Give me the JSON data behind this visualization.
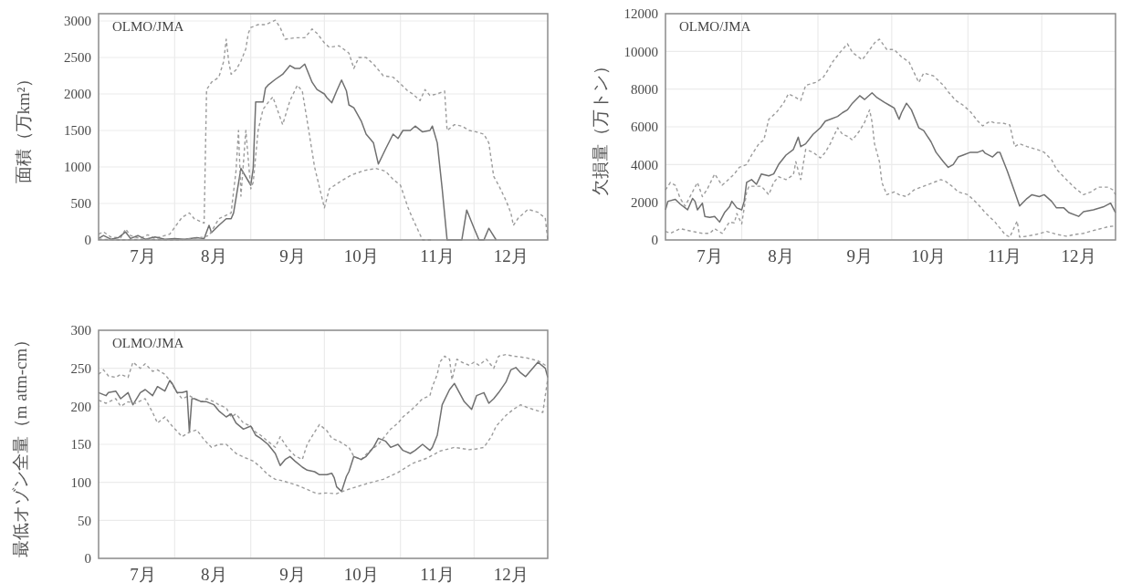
{
  "chart_data": [
    {
      "type": "line",
      "annotations": [
        "OLMO/JMA"
      ],
      "ylabel": "面積（万km²）",
      "xlim": [
        "--07-01",
        "--12-31"
      ],
      "xticks": [
        {
          "value": "--07-19",
          "label": "7月"
        },
        {
          "value": "--08-01",
          "label": null
        },
        {
          "value": "--08-17",
          "label": "8月"
        },
        {
          "value": "--09-01",
          "label": null
        },
        {
          "value": "--09-18",
          "label": "9月"
        },
        {
          "value": "--10-01",
          "label": null
        },
        {
          "value": "--10-16",
          "label": "10月"
        },
        {
          "value": "--11-01",
          "label": null
        },
        {
          "value": "--11-16",
          "label": "11月"
        },
        {
          "value": "--12-01",
          "label": null
        },
        {
          "value": "--12-16",
          "label": "12月"
        }
      ],
      "ylim": [
        0,
        3100
      ],
      "yticks": [
        0,
        500,
        1000,
        1500,
        2000,
        2500,
        3000
      ],
      "grid": true,
      "series": [
        {
          "color": "#9c9c9c",
          "line_style": "dashed",
          "x": [
            "--07-01",
            "--07-03",
            "--07-06",
            "--07-10",
            "--07-12",
            "--07-14",
            "--07-18",
            "--07-21",
            "--07-24",
            "--07-28",
            "--07-30",
            "--08-04",
            "--08-07",
            "--08-09",
            "--08-13",
            "--08-14",
            "--08-16",
            "--08-19",
            "--08-21",
            "--08-22",
            "--08-23",
            "--08-24",
            "--08-26",
            "--08-28",
            "--08-30",
            "--08-31",
            "--09-01",
            "--09-04",
            "--09-07",
            "--09-11",
            "--09-13",
            "--09-15",
            "--09-19",
            "--09-23",
            "--09-26",
            "--09-28",
            "--10-01",
            "--10-03",
            "--10-07",
            "--10-11",
            "--10-13",
            "--10-15",
            "--10-18",
            "--10-21",
            "--10-25",
            "--10-29",
            "--11-01",
            "--11-04",
            "--11-06",
            "--11-09",
            "--11-11",
            "--11-13",
            "--11-16",
            "--11-19",
            "--11-20",
            "--11-23",
            "--11-26",
            "--11-29",
            "--12-02",
            "--12-05",
            "--12-07",
            "--12-09",
            "--12-11",
            "--12-14",
            "--12-16",
            "--12-17",
            "--12-19",
            "--12-23",
            "--12-27",
            "--12-30",
            "--12-31"
          ],
          "values": [
            80,
            110,
            40,
            30,
            150,
            60,
            20,
            70,
            20,
            60,
            80,
            310,
            370,
            290,
            230,
            2060,
            2160,
            2230,
            2450,
            2750,
            2450,
            2270,
            2330,
            2450,
            2620,
            2830,
            2910,
            2950,
            2950,
            3010,
            2910,
            2750,
            2770,
            2770,
            2890,
            2830,
            2700,
            2640,
            2660,
            2560,
            2350,
            2500,
            2500,
            2410,
            2250,
            2230,
            2140,
            2040,
            2000,
            1910,
            2060,
            1980,
            2000,
            2040,
            1500,
            1580,
            1560,
            1500,
            1480,
            1450,
            1330,
            870,
            750,
            540,
            370,
            200,
            300,
            420,
            380,
            300,
            0
          ]
        },
        {
          "color": "#707070",
          "line_style": "solid",
          "x": [
            "--07-01",
            "--07-03",
            "--07-06",
            "--07-09",
            "--07-12",
            "--07-14",
            "--07-17",
            "--07-20",
            "--07-24",
            "--07-28",
            "--08-01",
            "--08-05",
            "--08-10",
            "--08-13",
            "--08-15",
            "--08-16",
            "--08-19",
            "--08-22",
            "--08-24",
            "--08-25",
            "--08-28",
            "--09-01",
            "--09-02",
            "--09-03",
            "--09-06",
            "--09-07",
            "--09-08",
            "--09-11",
            "--09-14",
            "--09-17",
            "--09-19",
            "--09-21",
            "--09-23",
            "--09-26",
            "--09-28",
            "--10-01",
            "--10-02",
            "--10-04",
            "--10-06",
            "--10-08",
            "--10-10",
            "--10-11",
            "--10-13",
            "--10-16",
            "--10-18",
            "--10-21",
            "--10-23",
            "--10-26",
            "--10-29",
            "--10-31",
            "--11-02",
            "--11-05",
            "--11-07",
            "--11-10",
            "--11-13",
            "--11-14",
            "--11-16",
            "--11-18",
            "--11-20",
            "--11-24",
            "--11-26",
            "--11-28",
            "--12-01",
            "--12-03",
            "--12-05",
            "--12-07",
            "--12-10"
          ],
          "values": [
            20,
            60,
            10,
            30,
            110,
            20,
            60,
            10,
            40,
            10,
            20,
            10,
            30,
            20,
            200,
            100,
            200,
            290,
            290,
            370,
            980,
            750,
            980,
            1890,
            1890,
            2080,
            2120,
            2200,
            2270,
            2390,
            2350,
            2350,
            2410,
            2160,
            2060,
            2000,
            1950,
            1880,
            2040,
            2190,
            2040,
            1850,
            1810,
            1630,
            1450,
            1330,
            1040,
            1250,
            1450,
            1390,
            1500,
            1500,
            1560,
            1480,
            1500,
            1560,
            1330,
            700,
            0,
            0,
            0,
            410,
            160,
            0,
            0,
            160,
            0
          ]
        },
        {
          "color": "#9c9c9c",
          "line_style": "dashed",
          "x": [
            "--07-01",
            "--07-10",
            "--07-20",
            "--08-01",
            "--08-10",
            "--08-15",
            "--08-19",
            "--08-24",
            "--08-26",
            "--08-27",
            "--08-28",
            "--08-30",
            "--09-01",
            "--09-02",
            "--09-04",
            "--09-06",
            "--09-08",
            "--09-10",
            "--09-14",
            "--09-17",
            "--09-20",
            "--09-22",
            "--09-24",
            "--09-27",
            "--10-01",
            "--10-03",
            "--10-07",
            "--10-12",
            "--10-17",
            "--10-22",
            "--10-26",
            "--10-29",
            "--11-01",
            "--11-04",
            "--11-06",
            "--11-10",
            "--11-14"
          ],
          "values": [
            10,
            0,
            10,
            0,
            20,
            60,
            290,
            370,
            950,
            1500,
            600,
            1500,
            700,
            790,
            1500,
            1790,
            1880,
            1960,
            1580,
            1910,
            2120,
            2040,
            1630,
            1000,
            440,
            700,
            790,
            890,
            950,
            980,
            940,
            830,
            750,
            450,
            290,
            0,
            0
          ]
        }
      ]
    },
    {
      "type": "line",
      "annotations": [
        "OLMO/JMA"
      ],
      "ylabel": "欠損量（万トン）",
      "xlim": [
        "--07-01",
        "--12-31"
      ],
      "xticks": [
        {
          "value": "--07-19",
          "label": "7月"
        },
        {
          "value": "--08-01",
          "label": null
        },
        {
          "value": "--08-17",
          "label": "8月"
        },
        {
          "value": "--09-01",
          "label": null
        },
        {
          "value": "--09-18",
          "label": "9月"
        },
        {
          "value": "--10-01",
          "label": null
        },
        {
          "value": "--10-16",
          "label": "10月"
        },
        {
          "value": "--11-01",
          "label": null
        },
        {
          "value": "--11-16",
          "label": "11月"
        },
        {
          "value": "--12-01",
          "label": null
        },
        {
          "value": "--12-16",
          "label": "12月"
        }
      ],
      "ylim": [
        0,
        12000
      ],
      "yticks": [
        0,
        2000,
        4000,
        6000,
        8000,
        10000,
        12000
      ],
      "grid": true,
      "series": [
        {
          "color": "#9c9c9c",
          "line_style": "dashed",
          "x": [
            "--07-01",
            "--07-03",
            "--07-05",
            "--07-07",
            "--07-09",
            "--07-14",
            "--07-16",
            "--07-18",
            "--07-21",
            "--07-24",
            "--07-27",
            "--07-29",
            "--07-31",
            "--08-03",
            "--08-05",
            "--08-08",
            "--08-10",
            "--08-12",
            "--08-15",
            "--08-18",
            "--08-20",
            "--08-23",
            "--08-25",
            "--08-27",
            "--08-31",
            "--09-03",
            "--09-05",
            "--09-07",
            "--09-10",
            "--09-13",
            "--09-15",
            "--09-19",
            "--09-21",
            "--09-24",
            "--09-26",
            "--09-29",
            "--10-02",
            "--10-05",
            "--10-08",
            "--10-12",
            "--10-14",
            "--10-18",
            "--10-22",
            "--10-24",
            "--10-27",
            "--10-30",
            "--11-02",
            "--11-05",
            "--11-07",
            "--11-10",
            "--11-12",
            "--11-15",
            "--11-18",
            "--11-20",
            "--11-22",
            "--11-25",
            "--11-29",
            "--12-02",
            "--12-05",
            "--12-07",
            "--12-11",
            "--12-15",
            "--12-18",
            "--12-21",
            "--12-24",
            "--12-28",
            "--12-30",
            "--12-31"
          ],
          "values": [
            2650,
            3050,
            2900,
            2200,
            1800,
            3050,
            2300,
            2700,
            3500,
            2900,
            3250,
            3500,
            3850,
            4000,
            4500,
            5100,
            5300,
            6400,
            6750,
            7250,
            7750,
            7550,
            7400,
            8200,
            8350,
            8600,
            9000,
            9450,
            9950,
            10400,
            9950,
            9550,
            9900,
            10450,
            10650,
            10100,
            10100,
            9700,
            9450,
            8350,
            8850,
            8700,
            8200,
            7850,
            7400,
            7150,
            6800,
            6300,
            6050,
            6300,
            6200,
            6200,
            6100,
            4950,
            5100,
            4950,
            4800,
            4650,
            4250,
            3750,
            3200,
            2700,
            2400,
            2550,
            2800,
            2800,
            2650,
            2400
          ]
        },
        {
          "color": "#707070",
          "line_style": "solid",
          "x": [
            "--07-01",
            "--07-02",
            "--07-05",
            "--07-07",
            "--07-10",
            "--07-12",
            "--07-13",
            "--07-14",
            "--07-16",
            "--07-17",
            "--07-19",
            "--07-21",
            "--07-23",
            "--07-25",
            "--07-27",
            "--07-28",
            "--07-30",
            "--08-01",
            "--08-02",
            "--08-03",
            "--08-05",
            "--08-07",
            "--08-09",
            "--08-12",
            "--08-14",
            "--08-16",
            "--08-19",
            "--08-22",
            "--08-24",
            "--08-25",
            "--08-27",
            "--08-30",
            "--09-02",
            "--09-04",
            "--09-06",
            "--09-09",
            "--09-11",
            "--09-13",
            "--09-15",
            "--09-18",
            "--09-20",
            "--09-23",
            "--09-25",
            "--09-28",
            "--09-30",
            "--10-02",
            "--10-04",
            "--10-05",
            "--10-07",
            "--10-09",
            "--10-12",
            "--10-14",
            "--10-17",
            "--10-19",
            "--10-22",
            "--10-24",
            "--10-26",
            "--10-28",
            "--10-30",
            "--11-02",
            "--11-05",
            "--11-07",
            "--11-08",
            "--11-11",
            "--11-13",
            "--11-14",
            "--11-17",
            "--11-20",
            "--11-22",
            "--11-25",
            "--11-27",
            "--11-30",
            "--12-02",
            "--12-05",
            "--12-07",
            "--12-10",
            "--12-12",
            "--12-16",
            "--12-18",
            "--12-22",
            "--12-26",
            "--12-29",
            "--12-31"
          ],
          "values": [
            1600,
            2050,
            2150,
            1900,
            1600,
            2200,
            2050,
            1600,
            1950,
            1250,
            1200,
            1250,
            950,
            1450,
            1750,
            2050,
            1700,
            1600,
            2050,
            3050,
            3200,
            2950,
            3500,
            3400,
            3500,
            4000,
            4500,
            4800,
            5450,
            4950,
            5100,
            5600,
            5950,
            6300,
            6400,
            6550,
            6750,
            6900,
            7250,
            7650,
            7450,
            7800,
            7550,
            7300,
            7150,
            7000,
            6400,
            6750,
            7250,
            6900,
            5950,
            5800,
            5200,
            4650,
            4150,
            3850,
            4000,
            4400,
            4500,
            4650,
            4650,
            4750,
            4600,
            4400,
            4650,
            4650,
            3650,
            2550,
            1800,
            2200,
            2400,
            2300,
            2400,
            2050,
            1700,
            1700,
            1450,
            1250,
            1500,
            1600,
            1750,
            1950,
            1450
          ]
        },
        {
          "color": "#9c9c9c",
          "line_style": "dashed",
          "x": [
            "--07-01",
            "--07-03",
            "--07-07",
            "--07-12",
            "--07-16",
            "--07-19",
            "--07-21",
            "--07-24",
            "--07-27",
            "--07-29",
            "--07-30",
            "--08-01",
            "--08-03",
            "--08-04",
            "--08-07",
            "--08-09",
            "--08-12",
            "--08-14",
            "--08-16",
            "--08-19",
            "--08-22",
            "--08-23",
            "--08-25",
            "--08-27",
            "--08-30",
            "--09-02",
            "--09-04",
            "--09-06",
            "--09-09",
            "--09-11",
            "--09-13",
            "--09-15",
            "--09-18",
            "--09-20",
            "--09-22",
            "--09-23",
            "--09-24",
            "--09-26",
            "--09-27",
            "--09-29",
            "--10-02",
            "--10-04",
            "--10-07",
            "--10-10",
            "--10-14",
            "--10-18",
            "--10-21",
            "--10-23",
            "--10-26",
            "--10-28",
            "--11-01",
            "--11-05",
            "--11-08",
            "--11-12",
            "--11-16",
            "--11-18",
            "--11-21",
            "--11-22",
            "--11-25",
            "--11-29",
            "--12-03",
            "--12-07",
            "--12-11",
            "--12-15",
            "--12-18",
            "--12-22",
            "--12-28",
            "--12-31"
          ],
          "values": [
            450,
            350,
            600,
            450,
            350,
            350,
            600,
            350,
            950,
            900,
            1400,
            850,
            2550,
            2850,
            2850,
            2850,
            2400,
            3050,
            3350,
            3200,
            3450,
            4150,
            3200,
            4800,
            4650,
            4350,
            4650,
            5100,
            5950,
            5600,
            5500,
            5300,
            5800,
            6250,
            6900,
            6250,
            5100,
            4150,
            3050,
            2400,
            2550,
            2400,
            2300,
            2650,
            2850,
            3050,
            3200,
            3100,
            2800,
            2550,
            2400,
            1900,
            1450,
            950,
            300,
            150,
            1000,
            150,
            200,
            300,
            450,
            300,
            200,
            300,
            350,
            500,
            700,
            750
          ]
        }
      ]
    },
    {
      "type": "line",
      "annotations": [
        "OLMO/JMA"
      ],
      "ylabel": "最低オゾン全量（m atm-cm）",
      "xlim": [
        "--07-01",
        "--12-31"
      ],
      "xticks": [
        {
          "value": "--07-19",
          "label": "7月"
        },
        {
          "value": "--08-01",
          "label": null
        },
        {
          "value": "--08-17",
          "label": "8月"
        },
        {
          "value": "--09-01",
          "label": null
        },
        {
          "value": "--09-18",
          "label": "9月"
        },
        {
          "value": "--10-01",
          "label": null
        },
        {
          "value": "--10-16",
          "label": "10月"
        },
        {
          "value": "--11-01",
          "label": null
        },
        {
          "value": "--11-16",
          "label": "11月"
        },
        {
          "value": "--12-01",
          "label": null
        },
        {
          "value": "--12-16",
          "label": "12月"
        }
      ],
      "ylim": [
        0,
        300
      ],
      "yticks": [
        0,
        50,
        100,
        150,
        200,
        250,
        300
      ],
      "grid": true,
      "series": [
        {
          "color": "#9c9c9c",
          "line_style": "dashed",
          "x": [
            "--07-01",
            "--07-03",
            "--07-05",
            "--07-08",
            "--07-10",
            "--07-13",
            "--07-15",
            "--07-18",
            "--07-20",
            "--07-23",
            "--07-25",
            "--07-28",
            "--07-30",
            "--08-02",
            "--08-04",
            "--08-07",
            "--08-09",
            "--08-12",
            "--08-14",
            "--08-17",
            "--08-19",
            "--08-22",
            "--08-24",
            "--08-26",
            "--08-29",
            "--09-01",
            "--09-03",
            "--09-05",
            "--09-08",
            "--09-11",
            "--09-13",
            "--09-16",
            "--09-19",
            "--09-22",
            "--09-24",
            "--09-27",
            "--09-29",
            "--10-02",
            "--10-04",
            "--10-07",
            "--10-11",
            "--10-13",
            "--10-16",
            "--10-19",
            "--10-23",
            "--10-26",
            "--10-28",
            "--10-31",
            "--11-02",
            "--11-05",
            "--11-07",
            "--11-10",
            "--11-13",
            "--11-14",
            "--11-16",
            "--11-17",
            "--11-19",
            "--11-21",
            "--11-22",
            "--11-24",
            "--11-26",
            "--11-29",
            "--12-01",
            "--12-03",
            "--12-06",
            "--12-09",
            "--12-11",
            "--12-14",
            "--12-17",
            "--12-22",
            "--12-27",
            "--12-31"
          ],
          "values": [
            242,
            248,
            240,
            238,
            242,
            238,
            258,
            250,
            256,
            246,
            248,
            242,
            234,
            218,
            210,
            214,
            210,
            206,
            210,
            206,
            202,
            198,
            186,
            190,
            178,
            174,
            166,
            162,
            154,
            146,
            160,
            145,
            135,
            130,
            150,
            166,
            176,
            168,
            158,
            154,
            146,
            134,
            130,
            140,
            150,
            162,
            170,
            178,
            186,
            194,
            200,
            210,
            214,
            226,
            242,
            258,
            266,
            262,
            235,
            262,
            258,
            254,
            258,
            254,
            262,
            250,
            266,
            268,
            266,
            264,
            260,
            252
          ]
        },
        {
          "color": "#707070",
          "line_style": "solid",
          "x": [
            "--07-01",
            "--07-04",
            "--07-05",
            "--07-08",
            "--07-10",
            "--07-13",
            "--07-15",
            "--07-18",
            "--07-20",
            "--07-23",
            "--07-25",
            "--07-28",
            "--07-30",
            "--07-31",
            "--08-02",
            "--08-04",
            "--08-06",
            "--08-07",
            "--08-08",
            "--08-09",
            "--08-12",
            "--08-14",
            "--08-17",
            "--08-19",
            "--08-22",
            "--08-24",
            "--08-26",
            "--08-29",
            "--09-01",
            "--09-03",
            "--09-05",
            "--09-08",
            "--09-11",
            "--09-13",
            "--09-15",
            "--09-17",
            "--09-19",
            "--09-22",
            "--09-24",
            "--09-27",
            "--09-29",
            "--10-02",
            "--10-04",
            "--10-05",
            "--10-06",
            "--10-08",
            "--10-10",
            "--10-11",
            "--10-13",
            "--10-16",
            "--10-18",
            "--10-21",
            "--10-23",
            "--10-26",
            "--10-28",
            "--10-31",
            "--11-02",
            "--11-05",
            "--11-07",
            "--11-10",
            "--11-13",
            "--11-14",
            "--11-16",
            "--11-18",
            "--11-21",
            "--11-23",
            "--11-25",
            "--11-27",
            "--11-30",
            "--12-02",
            "--12-05",
            "--12-07",
            "--12-09",
            "--12-11",
            "--12-14",
            "--12-16",
            "--12-18",
            "--12-20",
            "--12-22",
            "--12-27",
            "--12-30",
            "--12-31"
          ],
          "values": [
            218,
            214,
            218,
            220,
            210,
            218,
            202,
            218,
            222,
            214,
            226,
            220,
            234,
            230,
            218,
            218,
            220,
            166,
            210,
            210,
            206,
            206,
            202,
            194,
            186,
            190,
            178,
            170,
            174,
            162,
            158,
            150,
            138,
            122,
            130,
            134,
            128,
            120,
            116,
            114,
            110,
            110,
            112,
            106,
            94,
            88,
            108,
            114,
            134,
            130,
            134,
            146,
            158,
            154,
            146,
            150,
            142,
            138,
            142,
            150,
            142,
            146,
            162,
            202,
            222,
            230,
            218,
            206,
            196,
            214,
            218,
            204,
            210,
            218,
            232,
            248,
            251,
            244,
            239,
            258,
            250,
            238
          ]
        },
        {
          "color": "#9c9c9c",
          "line_style": "dashed",
          "x": [
            "--07-01",
            "--07-04",
            "--07-08",
            "--07-10",
            "--07-13",
            "--07-16",
            "--07-20",
            "--07-23",
            "--07-25",
            "--07-28",
            "--07-31",
            "--08-04",
            "--08-07",
            "--08-10",
            "--08-13",
            "--08-16",
            "--08-19",
            "--08-22",
            "--08-26",
            "--08-30",
            "--09-02",
            "--09-05",
            "--09-08",
            "--09-11",
            "--09-14",
            "--09-17",
            "--09-20",
            "--09-23",
            "--09-28",
            "--10-02",
            "--10-06",
            "--10-10",
            "--10-14",
            "--10-19",
            "--10-25",
            "--10-31",
            "--11-06",
            "--11-12",
            "--11-17",
            "--11-23",
            "--11-29",
            "--12-02",
            "--12-05",
            "--12-08",
            "--12-10",
            "--12-14",
            "--12-17",
            "--12-20",
            "--12-23",
            "--12-26",
            "--12-29",
            "--12-31"
          ],
          "values": [
            208,
            204,
            210,
            200,
            206,
            204,
            210,
            192,
            178,
            186,
            174,
            160,
            166,
            169,
            156,
            146,
            150,
            150,
            138,
            132,
            128,
            120,
            110,
            104,
            102,
            99,
            96,
            92,
            85,
            86,
            85,
            90,
            94,
            99,
            104,
            113,
            125,
            132,
            141,
            146,
            143,
            144,
            146,
            160,
            174,
            188,
            196,
            202,
            198,
            195,
            192,
            236
          ]
        }
      ]
    }
  ]
}
